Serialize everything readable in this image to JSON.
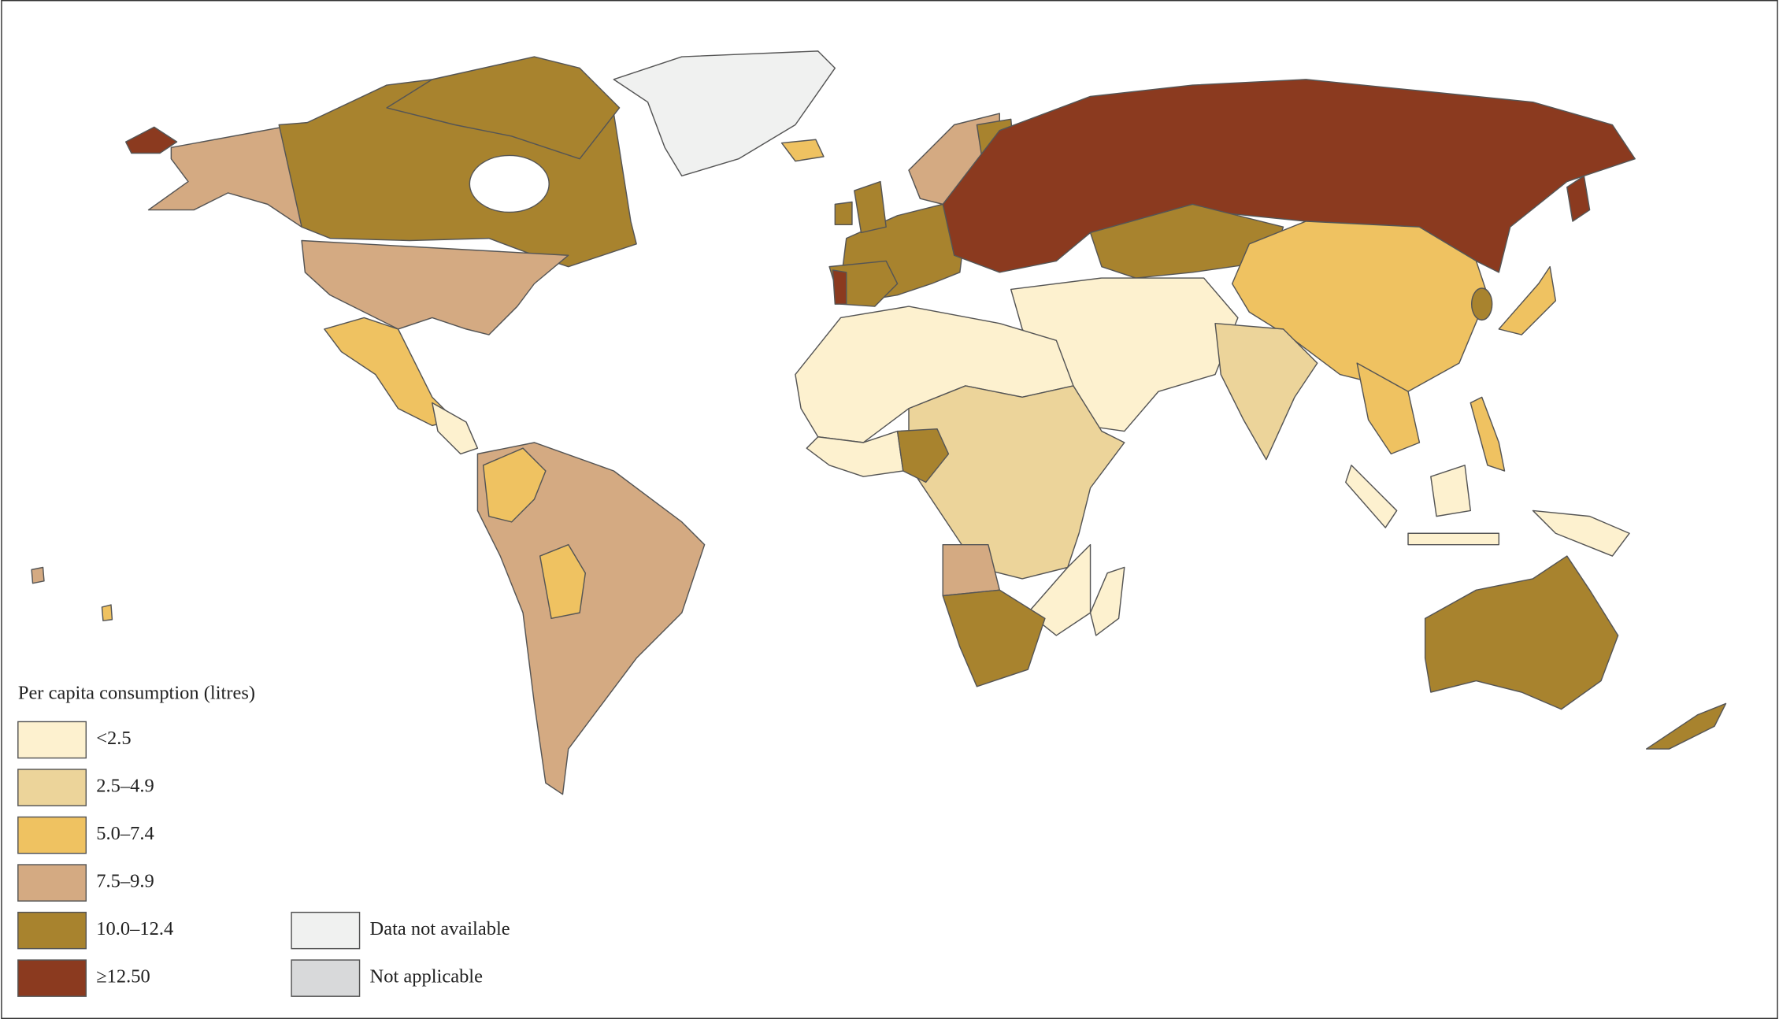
{
  "legend": {
    "title": "Per capita consumption (litres)",
    "classes": [
      {
        "label": "<2.5",
        "color": "#fdf1cf"
      },
      {
        "label": "2.5–4.9",
        "color": "#ecd49a"
      },
      {
        "label": "5.0–7.4",
        "color": "#efc261"
      },
      {
        "label": "7.5–9.9",
        "color": "#d4aa82"
      },
      {
        "label": "10.0–12.4",
        "color": "#a8832e"
      },
      {
        "label": "≥12.50",
        "color": "#8b3a1f"
      }
    ],
    "other": [
      {
        "label": "Data not available",
        "color": "#f0f1f0"
      },
      {
        "label": "Not applicable",
        "color": "#d8d9da"
      }
    ]
  }
}
